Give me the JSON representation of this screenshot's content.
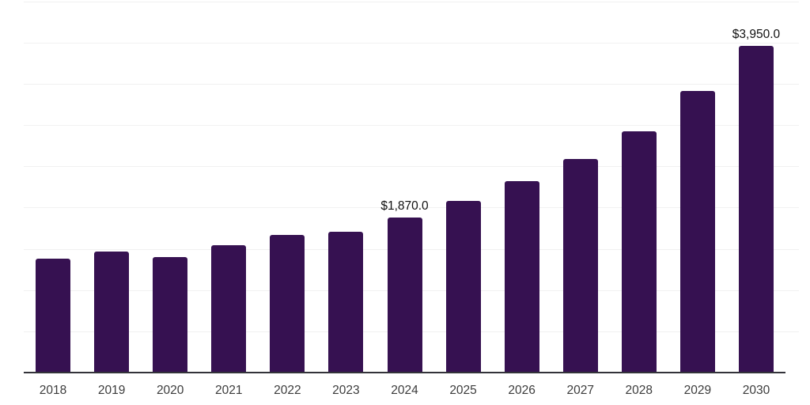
{
  "chart_data": {
    "type": "bar",
    "title": "",
    "xlabel": "",
    "ylabel": "",
    "categories": [
      "2018",
      "2019",
      "2020",
      "2021",
      "2022",
      "2023",
      "2024",
      "2025",
      "2026",
      "2027",
      "2028",
      "2029",
      "2030"
    ],
    "values": [
      1370,
      1460,
      1390,
      1530,
      1660,
      1700,
      1870,
      2070,
      2310,
      2580,
      2910,
      3400,
      3950
    ],
    "data_labels": {
      "2024": "$1,870.0",
      "2030": "$3,950.0"
    },
    "ylim": [
      0,
      4500
    ],
    "gridline_step": 500,
    "grid": "horizontal-only",
    "legend": "none",
    "y_tick_labels_visible": false,
    "colors": {
      "bar": "#361151",
      "axis_line": "#33333a",
      "gridline": "#f1f1f1",
      "tick_label": "#3c3c3c",
      "data_label": "#111111",
      "background": "#ffffff"
    }
  }
}
